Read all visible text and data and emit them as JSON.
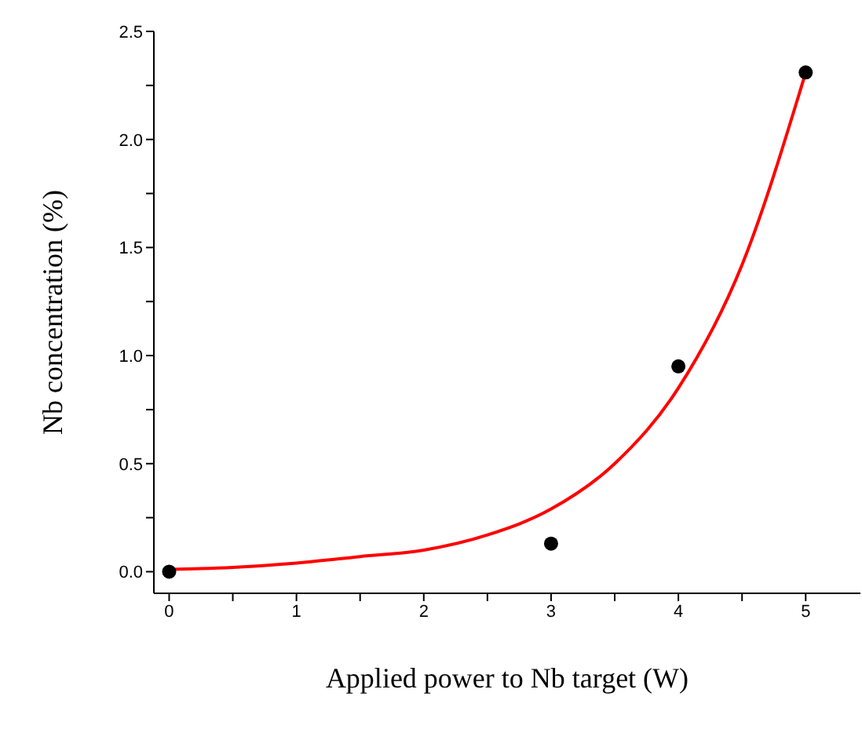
{
  "chart_data": {
    "type": "scatter",
    "xlabel": "Applied power to Nb target (W)",
    "ylabel": "Nb concentration (%)",
    "xlim": [
      -0.12,
      5.43
    ],
    "ylim": [
      -0.1,
      2.5
    ],
    "xticks": [
      0,
      {
        "value": 0.5,
        "label": null
      },
      1,
      {
        "value": 1.5,
        "label": null
      },
      2,
      {
        "value": 2.5,
        "label": null
      },
      3,
      {
        "value": 3.5,
        "label": null
      },
      4,
      {
        "value": 4.5,
        "label": null
      },
      5
    ],
    "yticks": [
      {
        "value": 0,
        "label": "0.0"
      },
      {
        "value": 0.25,
        "label": null
      },
      {
        "value": 0.5,
        "label": "0.5"
      },
      {
        "value": 0.75,
        "label": null
      },
      {
        "value": 1,
        "label": "1.0"
      },
      {
        "value": 1.25,
        "label": null
      },
      {
        "value": 1.5,
        "label": "1.5"
      },
      {
        "value": 1.75,
        "label": null
      },
      {
        "value": 2,
        "label": "2.0"
      },
      {
        "value": 2.25,
        "label": null
      },
      {
        "value": 2.5,
        "label": "2.5"
      }
    ],
    "grid": false,
    "legend": false,
    "series": [
      {
        "color": "#000000",
        "marker": "circle",
        "x": [
          0,
          3,
          4,
          5
        ],
        "values": [
          0,
          0.13,
          0.95,
          2.31
        ]
      },
      {
        "type": "line",
        "color": "#ff0000",
        "marker": "none",
        "line_style": "solid",
        "x": [
          0,
          0.5,
          1,
          1.5,
          2,
          2.5,
          3,
          3.5,
          4,
          4.5,
          5
        ],
        "values": [
          0.01,
          0.02,
          0.04,
          0.07,
          0.1,
          0.17,
          0.29,
          0.5,
          0.85,
          1.42,
          2.31
        ]
      }
    ]
  }
}
